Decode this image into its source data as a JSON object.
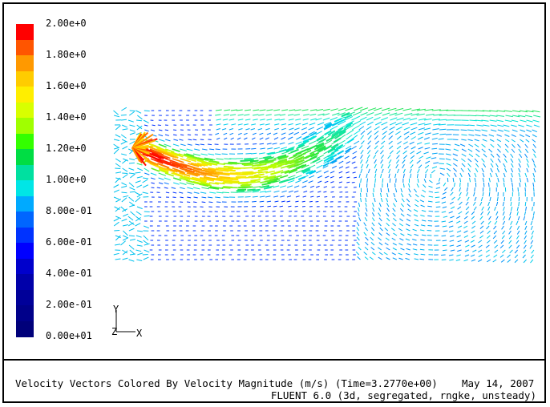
{
  "legend": {
    "title": "",
    "labels": [
      "2.00e+0",
      "1.80e+0",
      "1.60e+0",
      "1.40e+0",
      "1.20e+0",
      "1.00e+0",
      "8.00e-01",
      "6.00e-01",
      "4.00e-01",
      "2.00e-01",
      "0.00e+01"
    ],
    "colors": [
      "#ff0000",
      "#ff5500",
      "#ff9900",
      "#ffcc00",
      "#ffee00",
      "#d8ff00",
      "#a0ff00",
      "#33ff00",
      "#00dd44",
      "#00e0a0",
      "#00e6e6",
      "#00aaff",
      "#0066ff",
      "#0033ff",
      "#0000ff",
      "#0000cc",
      "#0000aa",
      "#000099",
      "#00008a",
      "#00007a"
    ]
  },
  "axes": {
    "y_label": "Y",
    "z_label": "Z",
    "x_label": "X"
  },
  "caption": {
    "line1": "Velocity Vectors Colored By Velocity Magnitude (m/s)  (Time=3.2770e+00)",
    "date": "May 14, 2007",
    "line2": "FLUENT 6.0 (3d, segregated, rngke, unsteady)"
  }
}
